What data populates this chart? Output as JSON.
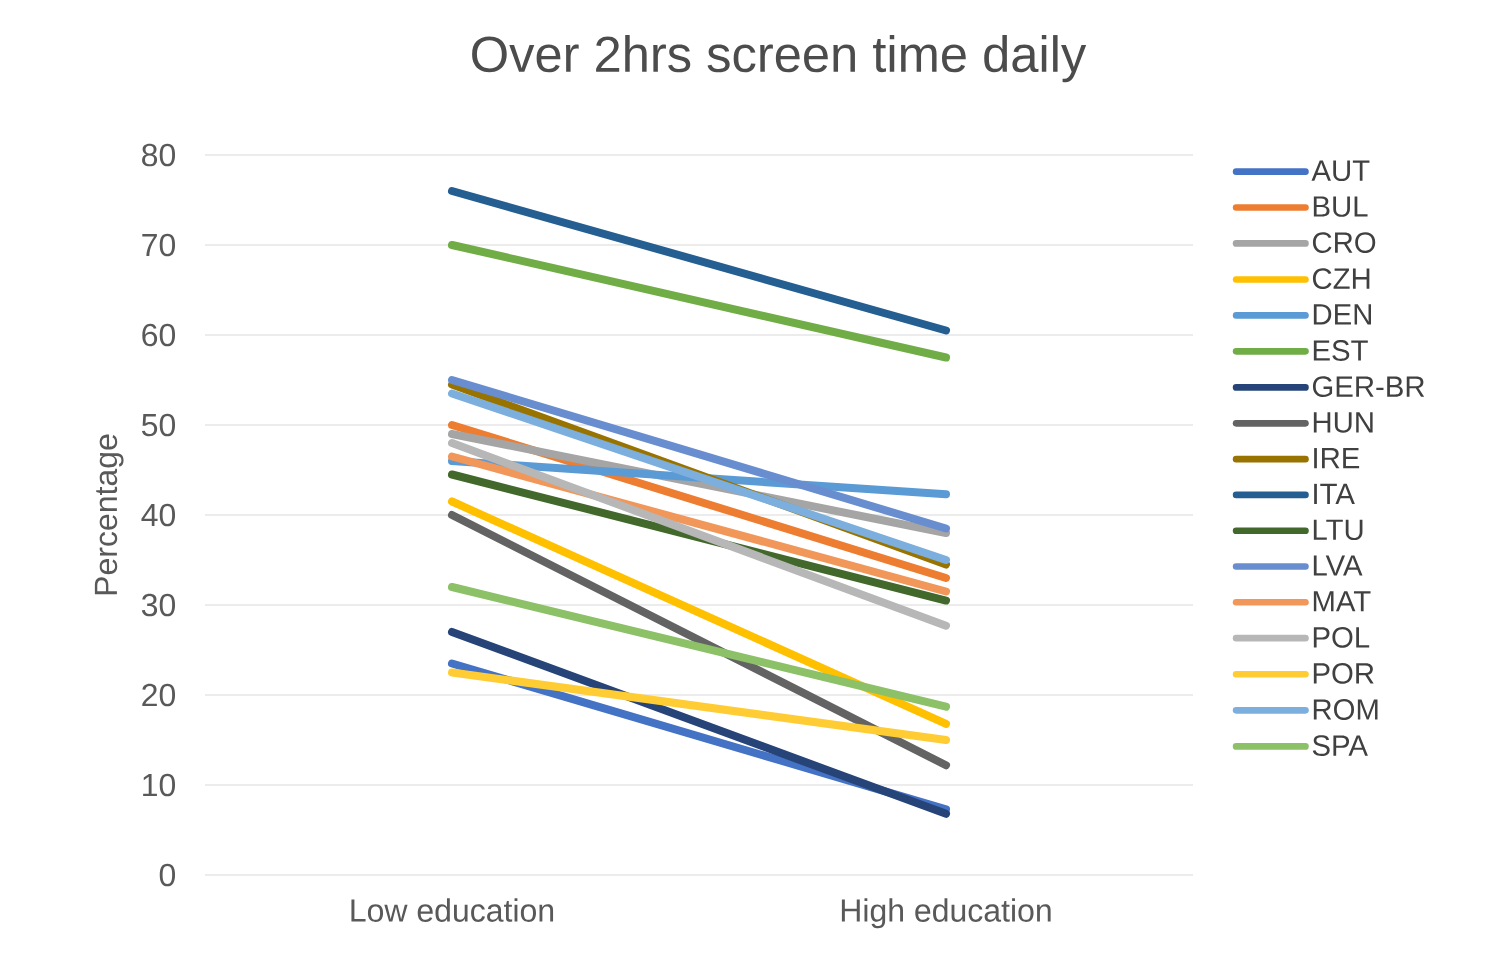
{
  "chart_data": {
    "type": "line",
    "title": "Over 2hrs screen time daily",
    "ylabel": "Percentage",
    "categories": [
      "Low education",
      "High education"
    ],
    "ylim": [
      0,
      80
    ],
    "yticks": [
      0,
      10,
      20,
      30,
      40,
      50,
      60,
      70,
      80
    ],
    "grid": "y",
    "legend": "right",
    "marker": "none",
    "line_style": "solid",
    "series": [
      {
        "name": "AUT",
        "color": "#4472c4",
        "values": [
          23.5,
          7.3
        ]
      },
      {
        "name": "BUL",
        "color": "#ed7d31",
        "values": [
          50,
          33
        ]
      },
      {
        "name": "CRO",
        "color": "#a5a5a5",
        "values": [
          49,
          38
        ]
      },
      {
        "name": "CZH",
        "color": "#ffc000",
        "values": [
          41.5,
          16.8
        ]
      },
      {
        "name": "DEN",
        "color": "#5b9bd5",
        "values": [
          46,
          42.3
        ]
      },
      {
        "name": "EST",
        "color": "#70ad47",
        "values": [
          70,
          57.5
        ]
      },
      {
        "name": "GER-BR",
        "color": "#264478",
        "values": [
          27,
          6.8
        ]
      },
      {
        "name": "HUN",
        "color": "#636363",
        "values": [
          40,
          12.2
        ]
      },
      {
        "name": "IRE",
        "color": "#997300",
        "values": [
          54.5,
          34.5
        ]
      },
      {
        "name": "ITA",
        "color": "#255e91",
        "values": [
          76,
          60.5
        ]
      },
      {
        "name": "LTU",
        "color": "#43682b",
        "values": [
          44.5,
          30.5
        ]
      },
      {
        "name": "LVA",
        "color": "#698ed0",
        "values": [
          55,
          38.5
        ]
      },
      {
        "name": "MAT",
        "color": "#f1975a",
        "values": [
          46.5,
          31.5
        ]
      },
      {
        "name": "POL",
        "color": "#b7b7b7",
        "values": [
          48,
          27.7
        ]
      },
      {
        "name": "POR",
        "color": "#ffcd33",
        "values": [
          22.5,
          15
        ]
      },
      {
        "name": "ROM",
        "color": "#7cafdd",
        "values": [
          53.5,
          35
        ]
      },
      {
        "name": "SPA",
        "color": "#8cc168",
        "values": [
          32,
          18.7
        ]
      }
    ]
  }
}
